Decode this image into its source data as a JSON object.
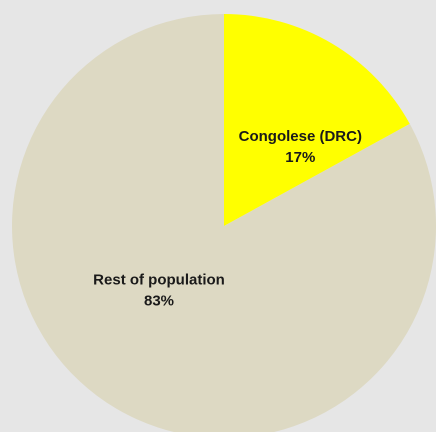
{
  "chart_data": {
    "type": "pie",
    "title": "",
    "slices": [
      {
        "label": "Congolese (DRC)",
        "value": 17,
        "value_text": "17%",
        "color": "#ffff00"
      },
      {
        "label": "Rest of population",
        "value": 83,
        "value_text": "83%",
        "color": "#ddd9c3"
      }
    ],
    "start_angle": "12 o'clock",
    "direction": "clockwise",
    "legend": "none",
    "background": "#e6e6e6"
  }
}
